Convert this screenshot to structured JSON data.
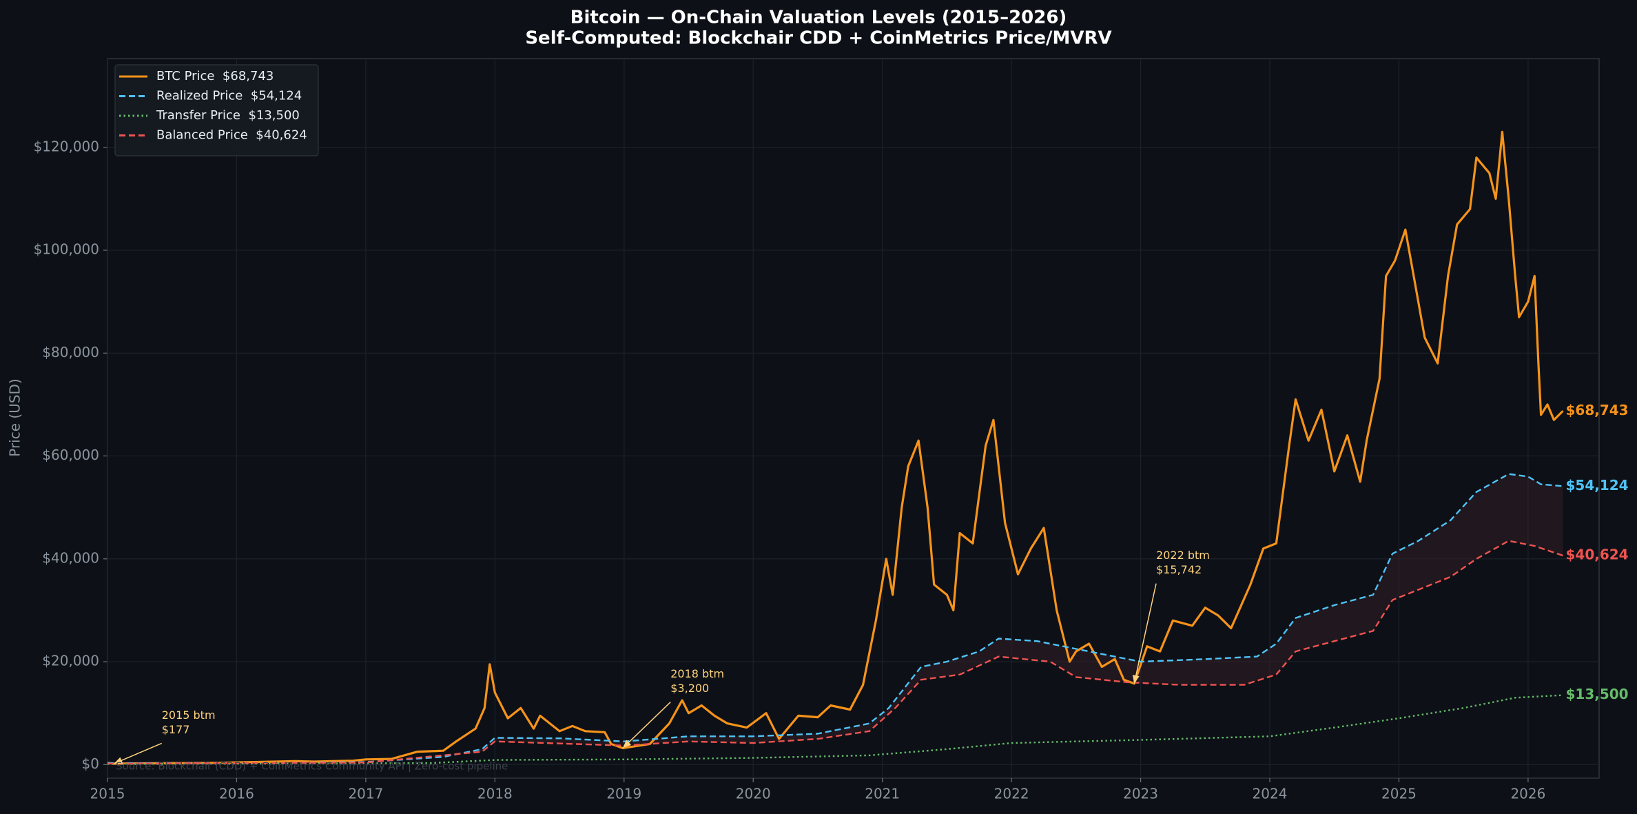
{
  "chart_data": {
    "type": "line",
    "title": "Bitcoin — On-Chain Valuation Levels  (2015–2026)",
    "subtitle": "Self-Computed: Blockchair CDD + CoinMetrics Price/MVRV",
    "y_label": "Price (USD)",
    "source": "Source: Blockchair (CDD) + CoinMetrics Community API  |  Zero-cost pipeline",
    "xlim": [
      2015,
      2026.55
    ],
    "xticks": [
      2015,
      2016,
      2017,
      2018,
      2019,
      2020,
      2021,
      2022,
      2023,
      2024,
      2025,
      2026
    ],
    "ylim": [
      -2640,
      137260
    ],
    "yticks": [
      {
        "value": 0,
        "label": "$0"
      },
      {
        "value": 20000,
        "label": "$20,000"
      },
      {
        "value": 40000,
        "label": "$40,000"
      },
      {
        "value": 60000,
        "label": "$60,000"
      },
      {
        "value": 80000,
        "label": "$80,000"
      },
      {
        "value": 100000,
        "label": "$100,000"
      },
      {
        "value": 120000,
        "label": "$120,000"
      }
    ],
    "grid": true,
    "legend": "upper left",
    "band": {
      "between": [
        "Realized Price  $54,124",
        "Balanced Price  $40,624"
      ],
      "color": "#3a1f28"
    },
    "series": [
      {
        "name": "BTC Price  $68,743",
        "color": "#f7931a",
        "style": "solid",
        "x": [
          2015.0,
          2015.05,
          2015.3,
          2015.6,
          2015.85,
          2016.0,
          2016.45,
          2016.6,
          2016.9,
          2017.0,
          2017.2,
          2017.4,
          2017.6,
          2017.7,
          2017.85,
          2017.92,
          2017.96,
          2018.0,
          2018.1,
          2018.2,
          2018.3,
          2018.35,
          2018.5,
          2018.6,
          2018.7,
          2018.85,
          2018.9,
          2018.99,
          2019.2,
          2019.35,
          2019.45,
          2019.5,
          2019.6,
          2019.7,
          2019.8,
          2019.95,
          2020.1,
          2020.2,
          2020.35,
          2020.5,
          2020.6,
          2020.75,
          2020.85,
          2020.95,
          2021.03,
          2021.08,
          2021.15,
          2021.2,
          2021.28,
          2021.35,
          2021.4,
          2021.5,
          2021.55,
          2021.6,
          2021.7,
          2021.8,
          2021.86,
          2021.95,
          2022.05,
          2022.15,
          2022.25,
          2022.35,
          2022.45,
          2022.5,
          2022.6,
          2022.7,
          2022.8,
          2022.87,
          2022.95,
          2023.05,
          2023.15,
          2023.25,
          2023.4,
          2023.5,
          2023.6,
          2023.7,
          2023.85,
          2023.95,
          2024.05,
          2024.15,
          2024.2,
          2024.3,
          2024.4,
          2024.5,
          2024.6,
          2024.7,
          2024.75,
          2024.85,
          2024.9,
          2024.97,
          2025.05,
          2025.1,
          2025.2,
          2025.3,
          2025.38,
          2025.45,
          2025.55,
          2025.6,
          2025.7,
          2025.75,
          2025.8,
          2025.85,
          2025.9,
          2025.93,
          2026.0,
          2026.05,
          2026.08,
          2026.1,
          2026.15,
          2026.2,
          2026.27
        ],
        "values": [
          315,
          177,
          240,
          280,
          330,
          430,
          650,
          580,
          750,
          1000,
          1100,
          2500,
          2700,
          4500,
          7000,
          11000,
          19500,
          14000,
          9000,
          11000,
          7000,
          9500,
          6500,
          7500,
          6500,
          6300,
          4000,
          3200,
          4000,
          8000,
          12500,
          10000,
          11500,
          9500,
          8000,
          7200,
          10000,
          5000,
          9500,
          9200,
          11500,
          10700,
          15500,
          28000,
          40000,
          33000,
          50000,
          58000,
          63000,
          50000,
          35000,
          33000,
          30000,
          45000,
          43000,
          62000,
          67000,
          47000,
          37000,
          42000,
          46000,
          30000,
          20000,
          22000,
          23500,
          19000,
          20500,
          16500,
          15742,
          23000,
          22000,
          28000,
          27000,
          30500,
          29000,
          26500,
          35000,
          42000,
          43000,
          62000,
          71000,
          63000,
          69000,
          57000,
          64000,
          55000,
          63000,
          75000,
          95000,
          98000,
          104000,
          97000,
          83000,
          78000,
          95000,
          105000,
          108000,
          118000,
          115000,
          110000,
          123000,
          110000,
          95000,
          87000,
          90000,
          95000,
          78000,
          68000,
          70000,
          67000,
          68743
        ],
        "value_labels": [
          null,
          null,
          null,
          null,
          null,
          null,
          null,
          null,
          null,
          null,
          null,
          null,
          null,
          null,
          null,
          null,
          null,
          null,
          null,
          null,
          null,
          null,
          null,
          null,
          null,
          null,
          null,
          null,
          null,
          null,
          null,
          null,
          null,
          null,
          null,
          null,
          null,
          null,
          null,
          null,
          null,
          null,
          null,
          null,
          null,
          null,
          null,
          null,
          null,
          null,
          null,
          null,
          null,
          null,
          null,
          null,
          null,
          null,
          null,
          null,
          null,
          null,
          null,
          null,
          null,
          null,
          null,
          null,
          null,
          null,
          null,
          null,
          null,
          null,
          null,
          null,
          null,
          null,
          null,
          null,
          null,
          null,
          null,
          null,
          null,
          null,
          null,
          null,
          null,
          null,
          null,
          null,
          null,
          null,
          null,
          null,
          null,
          null,
          null,
          null,
          null,
          null,
          null,
          null,
          null,
          null,
          null,
          null,
          null,
          null,
          "$68,743"
        ]
      },
      {
        "name": "Realized Price  $54,124",
        "color": "#4fc3f7",
        "style": "dashed",
        "x": [
          2015.0,
          2016,
          2017,
          2017.6,
          2017.9,
          2018.0,
          2018.5,
          2019.0,
          2019.5,
          2020.0,
          2020.5,
          2020.9,
          2021.05,
          2021.3,
          2021.5,
          2021.75,
          2021.9,
          2022.2,
          2022.4,
          2022.8,
          2023.0,
          2023.5,
          2023.9,
          2024.05,
          2024.2,
          2024.5,
          2024.8,
          2024.95,
          2025.15,
          2025.4,
          2025.6,
          2025.85,
          2026.0,
          2026.1,
          2026.27
        ],
        "values": [
          300,
          300,
          500,
          1500,
          3000,
          5200,
          5100,
          4500,
          5500,
          5500,
          6000,
          8000,
          11000,
          19000,
          20000,
          22000,
          24500,
          24000,
          23000,
          21000,
          20000,
          20500,
          21000,
          23500,
          28500,
          31000,
          33000,
          41000,
          43500,
          47500,
          53000,
          56500,
          56000,
          54500,
          54124
        ],
        "value_labels": [
          null,
          null,
          null,
          null,
          null,
          null,
          null,
          null,
          null,
          null,
          null,
          null,
          null,
          null,
          null,
          null,
          null,
          null,
          null,
          null,
          null,
          null,
          null,
          null,
          null,
          null,
          null,
          null,
          null,
          null,
          null,
          null,
          null,
          null,
          "$54,124"
        ]
      },
      {
        "name": "Transfer Price  $13,500",
        "color": "#66bb6a",
        "style": "dotted",
        "x": [
          2015.0,
          2017.5,
          2018.0,
          2019,
          2020,
          2020.9,
          2021.5,
          2022,
          2023,
          2024,
          2024.5,
          2025,
          2025.5,
          2025.9,
          2026.27
        ],
        "values": [
          100,
          300,
          900,
          1000,
          1300,
          1800,
          3000,
          4200,
          4800,
          5500,
          7200,
          9000,
          11000,
          13000,
          13500
        ],
        "value_labels": [
          null,
          null,
          null,
          null,
          null,
          null,
          null,
          null,
          null,
          null,
          null,
          null,
          null,
          null,
          "$13,500"
        ]
      },
      {
        "name": "Balanced Price  $40,624",
        "color": "#ef5350",
        "style": "dashed",
        "x": [
          2015.0,
          2017,
          2017.9,
          2018.0,
          2019.0,
          2019.5,
          2020,
          2020.5,
          2020.9,
          2021.1,
          2021.3,
          2021.6,
          2021.9,
          2022.3,
          2022.5,
          2022.9,
          2023.3,
          2023.8,
          2024.05,
          2024.2,
          2024.5,
          2024.8,
          2024.95,
          2025.15,
          2025.4,
          2025.6,
          2025.85,
          2026.05,
          2026.27
        ],
        "values": [
          200,
          400,
          2500,
          4500,
          3700,
          4500,
          4200,
          5000,
          6500,
          11000,
          16500,
          17500,
          21000,
          20000,
          17000,
          16000,
          15500,
          15500,
          17500,
          22000,
          24000,
          26000,
          32000,
          34000,
          36500,
          40000,
          43500,
          42500,
          40624
        ],
        "value_labels": [
          null,
          null,
          null,
          null,
          null,
          null,
          null,
          null,
          null,
          null,
          null,
          null,
          null,
          null,
          null,
          null,
          null,
          null,
          null,
          null,
          null,
          null,
          null,
          null,
          null,
          null,
          null,
          null,
          "$40,624"
        ]
      }
    ],
    "annotations": [
      {
        "lines": [
          "2015 btm",
          "$177"
        ],
        "x": 2015.05,
        "y": 177
      },
      {
        "lines": [
          "2018 btm",
          "$3,200"
        ],
        "x": 2018.99,
        "y": 3200
      },
      {
        "lines": [
          "2022 btm",
          "$15,742"
        ],
        "x": 2022.95,
        "y": 15742
      }
    ]
  }
}
